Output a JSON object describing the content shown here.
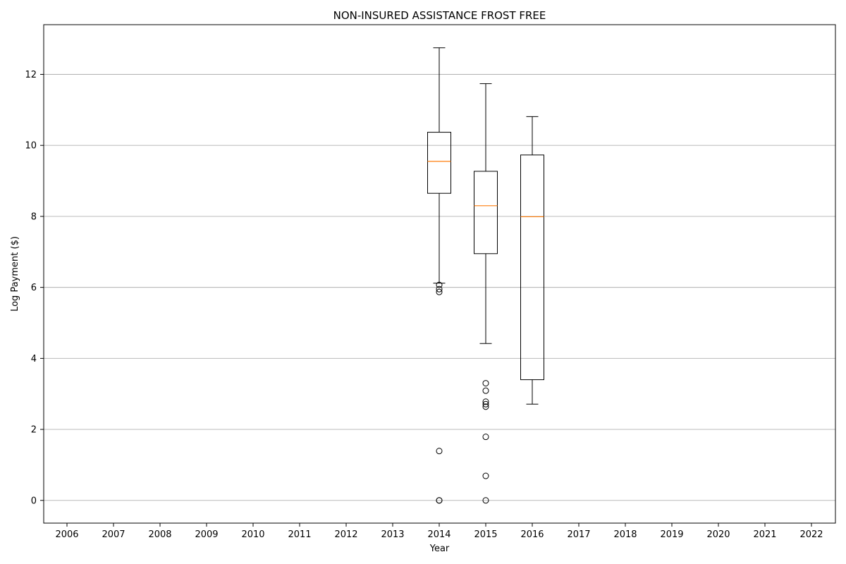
{
  "chart_data": {
    "type": "boxplot",
    "title": "NON-INSURED ASSISTANCE FROST FREE",
    "xlabel": "Year",
    "ylabel": "Log Payment ($)",
    "categories": [
      "2006",
      "2007",
      "2008",
      "2009",
      "2010",
      "2011",
      "2012",
      "2013",
      "2014",
      "2015",
      "2016",
      "2017",
      "2018",
      "2019",
      "2020",
      "2021",
      "2022"
    ],
    "ylim": [
      -0.64,
      13.4
    ],
    "y_ticks": [
      0,
      2,
      4,
      6,
      8,
      10,
      12
    ],
    "grid": "horizontal",
    "colors": {
      "box": "#000000",
      "median": "#ff7f0e",
      "grid": "#b0b0b0",
      "flier": "#000000"
    },
    "boxes": [
      {
        "year": "2014",
        "whisker_low": 6.12,
        "q1": 8.65,
        "median": 9.55,
        "q3": 10.37,
        "whisker_high": 12.75,
        "fliers": [
          6.07,
          5.95,
          5.87,
          1.39,
          0.0,
          0.0
        ]
      },
      {
        "year": "2015",
        "whisker_low": 4.42,
        "q1": 6.95,
        "median": 8.3,
        "q3": 9.27,
        "whisker_high": 11.74,
        "fliers": [
          3.3,
          3.09,
          2.78,
          2.71,
          2.64,
          1.79,
          0.69,
          0.0
        ]
      },
      {
        "year": "2016",
        "whisker_low": 2.71,
        "q1": 3.4,
        "median": 7.99,
        "q3": 9.73,
        "whisker_high": 10.81,
        "fliers": []
      }
    ]
  }
}
